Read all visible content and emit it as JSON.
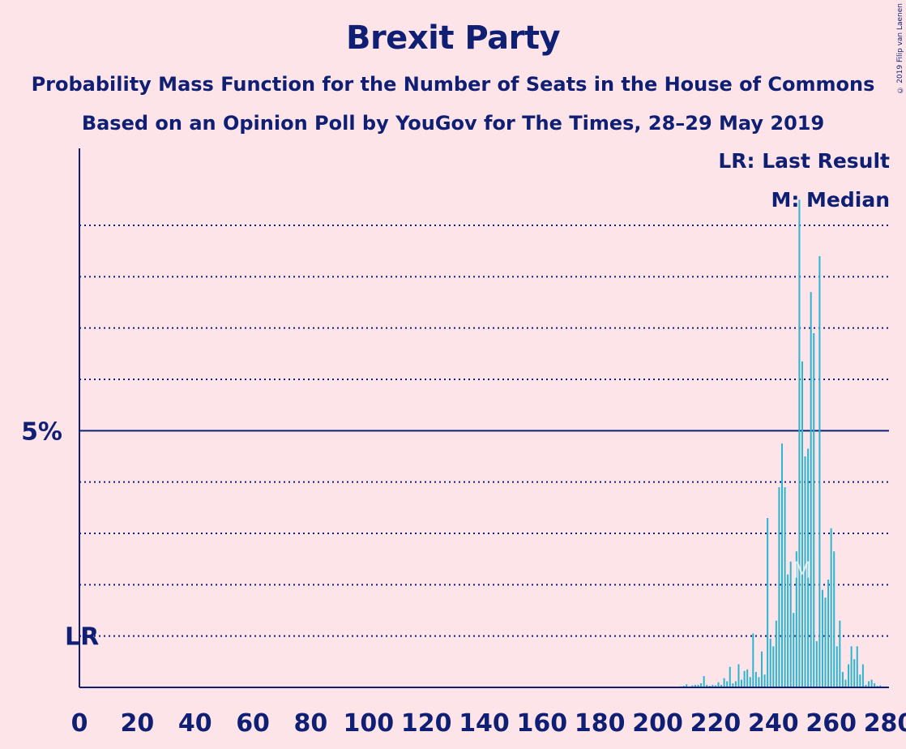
{
  "header": {
    "title": "Brexit Party",
    "subtitle1": "Probability Mass Function for the Number of Seats in the House of Commons",
    "subtitle2": "Based on an Opinion Poll by YouGov for The Times, 28–29 May 2019",
    "copyright": "© 2019 Filip van Laenen"
  },
  "legend": {
    "lr": "LR: Last Result",
    "median": "M: Median"
  },
  "colors": {
    "background": "#fde4e8",
    "bar": "#2bb5cf",
    "text": "#0f1f73",
    "axis": "#0f1f73"
  },
  "chart_data": {
    "type": "bar",
    "title": "Brexit Party",
    "xlabel": "",
    "ylabel": "",
    "xlim": [
      0,
      280
    ],
    "ylim": [
      0,
      10.5
    ],
    "x_ticks": [
      0,
      20,
      40,
      60,
      80,
      100,
      120,
      140,
      160,
      180,
      200,
      220,
      240,
      260,
      280
    ],
    "y_tick_labels": [
      {
        "value": 5,
        "label": "5%"
      }
    ],
    "gridlines": [
      1,
      2,
      3,
      4,
      6,
      7,
      8,
      9
    ],
    "solid_line": 5,
    "markers": [
      {
        "label": "LR",
        "x": 0,
        "y": 1
      },
      {
        "label": "M",
        "x": 250,
        "y": 2.3
      }
    ],
    "x": [
      208,
      209,
      210,
      211,
      212,
      213,
      214,
      215,
      216,
      217,
      218,
      219,
      220,
      221,
      222,
      223,
      224,
      225,
      226,
      227,
      228,
      229,
      230,
      231,
      232,
      233,
      234,
      235,
      236,
      237,
      238,
      239,
      240,
      241,
      242,
      243,
      244,
      245,
      246,
      247,
      248,
      249,
      250,
      251,
      252,
      253,
      254,
      255,
      256,
      257,
      258,
      259,
      260,
      261,
      262,
      263,
      264,
      265,
      266,
      267,
      268,
      269,
      270,
      271,
      272,
      273,
      274,
      275,
      276,
      277,
      278,
      279
    ],
    "values": [
      0.02,
      0.03,
      0.06,
      0.02,
      0.04,
      0.05,
      0.05,
      0.08,
      0.22,
      0.05,
      0.03,
      0.05,
      0.04,
      0.1,
      0.05,
      0.18,
      0.12,
      0.4,
      0.08,
      0.12,
      0.45,
      0.15,
      0.32,
      0.35,
      0.2,
      1.05,
      0.3,
      0.2,
      0.7,
      0.25,
      3.3,
      0.95,
      0.8,
      1.3,
      3.9,
      4.75,
      3.9,
      2.2,
      2.45,
      1.45,
      2.65,
      9.5,
      6.35,
      4.5,
      4.65,
      7.7,
      6.9,
      0.9,
      8.4,
      1.9,
      1.75,
      2.1,
      3.1,
      2.65,
      0.8,
      1.3,
      0.3,
      0.15,
      0.45,
      0.8,
      0.55,
      0.8,
      0.25,
      0.45,
      0.05,
      0.12,
      0.15,
      0.08,
      0.03,
      0.04,
      0.02,
      0.02
    ]
  }
}
